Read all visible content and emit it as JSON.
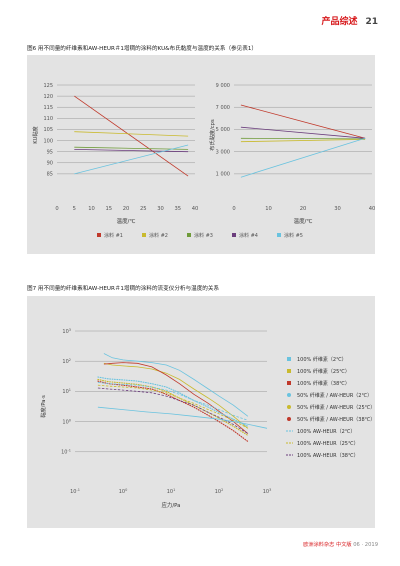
{
  "header": {
    "section_title": "产品综述",
    "page_number": "21"
  },
  "figure6": {
    "caption": "图6 用不同量的纤维素和AW-HEUR＃1增稠的涂料的KU&布氏黏度与温度的关系（参见表1）",
    "chart_data": [
      {
        "type": "line",
        "ylabel": "KU黏度",
        "xlabel": "温度/℃",
        "ylim": [
          80,
          125
        ],
        "xlim": [
          0,
          40
        ],
        "yticks": [
          "125",
          "120",
          "115",
          "110",
          "105",
          "100",
          "95",
          "90",
          "85"
        ],
        "xticks": [
          "0",
          "5",
          "10",
          "15",
          "20",
          "25",
          "30",
          "35",
          "40"
        ],
        "series": [
          {
            "name": "涂料 #1",
            "color": "#c0392b",
            "x": [
              5,
              38
            ],
            "y": [
              120,
              84
            ]
          },
          {
            "name": "涂料 #2",
            "color": "#c9ba2e",
            "x": [
              5,
              38
            ],
            "y": [
              104,
              102
            ]
          },
          {
            "name": "涂料 #3",
            "color": "#6f9b3a",
            "x": [
              5,
              38
            ],
            "y": [
              97,
              96
            ]
          },
          {
            "name": "涂料 #4",
            "color": "#6b3d7d",
            "x": [
              5,
              38
            ],
            "y": [
              96,
              95
            ]
          },
          {
            "name": "涂料 #5",
            "color": "#6ac3df",
            "x": [
              5,
              38
            ],
            "y": [
              85,
              98
            ]
          }
        ]
      },
      {
        "type": "line",
        "ylabel": "布氏黏度/cps",
        "xlabel": "温度/℃",
        "ylim": [
          0,
          9000
        ],
        "xlim": [
          0,
          40
        ],
        "yticks": [
          "9 000",
          "7 000",
          "5 000",
          "3 000",
          "1 000"
        ],
        "xticks": [
          "0",
          "10",
          "20",
          "30",
          "40"
        ],
        "series": [
          {
            "name": "涂料 #1",
            "color": "#c0392b",
            "x": [
              2,
              38
            ],
            "y": [
              7200,
              4200
            ]
          },
          {
            "name": "涂料 #2",
            "color": "#c9ba2e",
            "x": [
              2,
              38
            ],
            "y": [
              3900,
              4100
            ]
          },
          {
            "name": "涂料 #3",
            "color": "#6f9b3a",
            "x": [
              2,
              38
            ],
            "y": [
              4200,
              4150
            ]
          },
          {
            "name": "涂料 #4",
            "color": "#6b3d7d",
            "x": [
              2,
              38
            ],
            "y": [
              5200,
              4200
            ]
          },
          {
            "name": "涂料 #5",
            "color": "#6ac3df",
            "x": [
              2,
              38
            ],
            "y": [
              700,
              4200
            ]
          }
        ]
      }
    ],
    "legend": [
      {
        "label": "涂料 #1",
        "color": "#c0392b"
      },
      {
        "label": "涂料 #2",
        "color": "#c9ba2e"
      },
      {
        "label": "涂料 #3",
        "color": "#6f9b3a"
      },
      {
        "label": "涂料 #4",
        "color": "#6b3d7d"
      },
      {
        "label": "涂料 #5",
        "color": "#6ac3df"
      }
    ]
  },
  "figure7": {
    "caption": "图7 用不同量的纤维素和AW-HEUR＃1增稠的涂料的流变仪分析与温度的关系",
    "chart_data": {
      "type": "line",
      "scale": "log-log",
      "xlabel": "应力/Pa",
      "ylabel": "黏度/Pa·s",
      "xlim": [
        0.1,
        1000
      ],
      "ylim": [
        0.01,
        1000
      ],
      "yticks": [
        {
          "base": "10",
          "exp": "3",
          "value": 1000
        },
        {
          "base": "10",
          "exp": "2",
          "value": 100
        },
        {
          "base": "10",
          "exp": "1",
          "value": 10
        },
        {
          "base": "10",
          "exp": "0",
          "value": 1
        },
        {
          "base": "10",
          "exp": "-1",
          "value": 0.1
        }
      ],
      "xticks": [
        {
          "base": "10",
          "exp": "-1",
          "value": 0.1
        },
        {
          "base": "10",
          "exp": "0",
          "value": 1
        },
        {
          "base": "10",
          "exp": "1",
          "value": 10
        },
        {
          "base": "10",
          "exp": "2",
          "value": 100
        },
        {
          "base": "10",
          "exp": "3",
          "value": 1000
        }
      ],
      "series": [
        {
          "name": "100% 纤维素（2℃）",
          "color": "#6ac3df",
          "style": "solid",
          "x": [
            0.4,
            0.6,
            1,
            2,
            4,
            8,
            15,
            30,
            60,
            100,
            200,
            400
          ],
          "y": [
            180,
            130,
            110,
            100,
            90,
            75,
            50,
            25,
            12,
            7,
            3.5,
            1.5
          ]
        },
        {
          "name": "100% 纤维素（25℃）",
          "color": "#c9ba2e",
          "style": "solid",
          "x": [
            0.4,
            0.6,
            1,
            2,
            4,
            8,
            15,
            30,
            60,
            100,
            200,
            400
          ],
          "y": [
            85,
            75,
            70,
            65,
            55,
            40,
            25,
            12,
            6,
            3.5,
            1.5,
            0.6
          ]
        },
        {
          "name": "100% 纤维素（38℃）",
          "color": "#c0392b",
          "style": "solid",
          "x": [
            0.4,
            0.6,
            1,
            2,
            4,
            8,
            15,
            30,
            60,
            100,
            200,
            400
          ],
          "y": [
            80,
            85,
            90,
            85,
            65,
            35,
            18,
            8,
            4,
            2.2,
            1,
            0.4
          ]
        },
        {
          "name": "50% 纤维素 / AW-HEUR（2℃）",
          "color": "#6ac3df",
          "style": "dotted",
          "x": [
            0.3,
            0.5,
            1,
            2,
            4,
            8,
            15,
            30,
            60,
            100,
            200,
            400
          ],
          "y": [
            30,
            26,
            24,
            22,
            18,
            14,
            9,
            5,
            3,
            2,
            1.2,
            0.7
          ]
        },
        {
          "name": "50% 纤维素 / AW-HEUR（25℃）",
          "color": "#c9ba2e",
          "style": "dotted",
          "x": [
            0.3,
            0.5,
            1,
            2,
            4,
            8,
            15,
            30,
            60,
            100,
            200,
            400
          ],
          "y": [
            25,
            21,
            19,
            17,
            14,
            10,
            6,
            3.5,
            2,
            1.3,
            0.7,
            0.35
          ]
        },
        {
          "name": "50% 纤维素 / AW-HEUR（38℃）",
          "color": "#c0392b",
          "style": "dotted",
          "x": [
            0.3,
            0.5,
            1,
            2,
            4,
            8,
            15,
            30,
            60,
            100,
            200,
            400
          ],
          "y": [
            22,
            18,
            16,
            14,
            12,
            8,
            5,
            3,
            1.6,
            1,
            0.5,
            0.22
          ]
        },
        {
          "name": "100% AW-HEUR（2℃）",
          "color": "#6ac3df",
          "style": "dashed",
          "x": [
            0.3,
            0.5,
            1,
            2,
            4,
            8,
            15,
            30,
            60,
            100,
            200,
            400
          ],
          "y": [
            20,
            18,
            17,
            16,
            14,
            11,
            8,
            5,
            3.5,
            2.5,
            1.6,
            1.1
          ]
        },
        {
          "name": "100% AW-HEUR（25℃）",
          "color": "#c9ba2e",
          "style": "dashed",
          "x": [
            0.3,
            0.5,
            1,
            2,
            4,
            8,
            15,
            30,
            60,
            100,
            200,
            400
          ],
          "y": [
            16,
            15,
            14,
            13,
            11,
            9,
            6,
            4,
            2.5,
            1.8,
            1.1,
            0.6
          ]
        },
        {
          "name": "100% AW-HEUR（38℃）",
          "color": "#6b3d7d",
          "style": "dashed",
          "x": [
            0.3,
            0.5,
            1,
            2,
            4,
            8,
            15,
            30,
            60,
            100,
            200,
            400
          ],
          "y": [
            13,
            12,
            11,
            10,
            9,
            7,
            5,
            3.5,
            2,
            1.4,
            0.8,
            0.4
          ]
        },
        {
          "name": "",
          "color": "#6ac3df",
          "style": "solid",
          "x": [
            0.3,
            1,
            3,
            10,
            30,
            100,
            300,
            1000
          ],
          "y": [
            3,
            2.5,
            2.1,
            1.8,
            1.5,
            1.2,
            0.9,
            0.6
          ]
        }
      ]
    }
  },
  "footer": {
    "journal": "欧洲涂料杂志",
    "edition": "中文版",
    "issue": "06 · 2019"
  }
}
